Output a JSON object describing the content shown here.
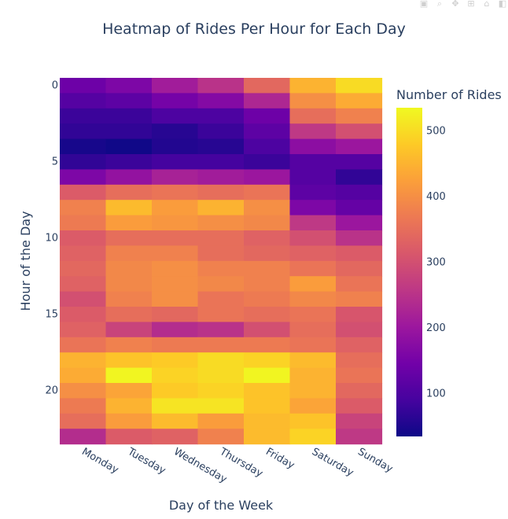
{
  "chart_data": {
    "type": "heatmap",
    "title": "Heatmap of Rides Per Hour for Each Day",
    "xlabel": "Day of the Week",
    "ylabel": "Hour of the Day",
    "colorbar_title": "Number of Rides",
    "colorscale": [
      "#0d0887",
      "#46039f",
      "#7201a8",
      "#9c179e",
      "#bd3786",
      "#d8576b",
      "#ed7953",
      "#fb9f3a",
      "#fdca26",
      "#f0f921"
    ],
    "zmin": 35,
    "zmax": 535,
    "colorbar_ticks": [
      100,
      200,
      300,
      400,
      500
    ],
    "y_ticks": [
      0,
      5,
      10,
      15,
      20
    ],
    "days": [
      "Monday",
      "Tuesday",
      "Wednesday",
      "Thursday",
      "Friday",
      "Saturday",
      "Sunday"
    ],
    "hours": [
      0,
      1,
      2,
      3,
      4,
      5,
      6,
      7,
      8,
      9,
      10,
      11,
      12,
      13,
      14,
      15,
      16,
      17,
      18,
      19,
      20,
      21,
      22,
      23
    ],
    "z": [
      [
        140,
        160,
        210,
        250,
        340,
        450,
        500
      ],
      [
        110,
        120,
        150,
        170,
        230,
        400,
        440
      ],
      [
        80,
        80,
        100,
        100,
        140,
        350,
        380
      ],
      [
        70,
        70,
        60,
        80,
        120,
        260,
        300
      ],
      [
        45,
        38,
        55,
        60,
        100,
        180,
        200
      ],
      [
        70,
        80,
        90,
        90,
        80,
        110,
        110
      ],
      [
        160,
        190,
        220,
        210,
        200,
        110,
        70
      ],
      [
        320,
        350,
        360,
        350,
        360,
        120,
        110
      ],
      [
        380,
        460,
        420,
        450,
        400,
        160,
        130
      ],
      [
        370,
        420,
        410,
        400,
        390,
        260,
        200
      ],
      [
        320,
        350,
        350,
        350,
        330,
        300,
        250
      ],
      [
        330,
        380,
        380,
        350,
        340,
        330,
        320
      ],
      [
        340,
        390,
        400,
        380,
        380,
        360,
        340
      ],
      [
        330,
        390,
        400,
        390,
        380,
        420,
        360
      ],
      [
        300,
        380,
        400,
        360,
        370,
        390,
        380
      ],
      [
        320,
        350,
        340,
        360,
        350,
        360,
        310
      ],
      [
        330,
        280,
        240,
        250,
        300,
        350,
        300
      ],
      [
        360,
        380,
        370,
        370,
        370,
        360,
        330
      ],
      [
        450,
        470,
        480,
        500,
        490,
        460,
        350
      ],
      [
        440,
        530,
        490,
        500,
        530,
        450,
        360
      ],
      [
        400,
        430,
        480,
        490,
        470,
        450,
        340
      ],
      [
        370,
        450,
        510,
        510,
        470,
        430,
        320
      ],
      [
        350,
        420,
        460,
        420,
        460,
        470,
        280
      ],
      [
        240,
        320,
        330,
        380,
        460,
        490,
        260
      ]
    ]
  }
}
